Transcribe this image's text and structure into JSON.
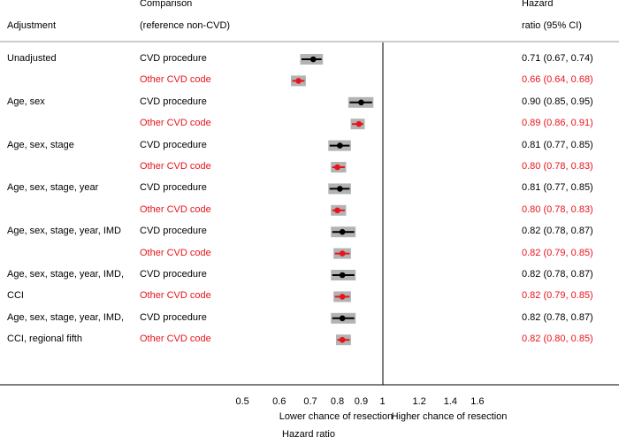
{
  "header": {
    "adjustment": "Adjustment",
    "comparison_line1": "Comparison",
    "comparison_line2": "(reference non-CVD)",
    "hr_line1": "Hazard",
    "hr_line2": "ratio (95% CI)"
  },
  "colors": {
    "cvd_procedure": "#000000",
    "other_cvd_code": "#e8141c",
    "ci_box": "#b3b3b3"
  },
  "chart_data": {
    "type": "forest",
    "xlabel": "Hazard ratio",
    "xscale": "log",
    "xlim": [
      0.4,
      2.2
    ],
    "reference_line": 1,
    "ticks": [
      "0.5",
      "0.6",
      "0.7",
      "0.8",
      "0.9",
      "1",
      "1.2",
      "1.4",
      "1.6"
    ],
    "tick_values": [
      0.5,
      0.6,
      0.7,
      0.8,
      0.9,
      1,
      1.2,
      1.4,
      1.6
    ],
    "annotation_left": "Lower chance of resection",
    "annotation_right": "Higher chance of resection",
    "rows": [
      {
        "adjustment": "Unadjusted",
        "comparison": "CVD procedure",
        "group": "cvd",
        "hr": 0.71,
        "lo": 0.67,
        "hi": 0.74,
        "label": "0.71 (0.67, 0.74)"
      },
      {
        "adjustment": "",
        "comparison": "Other CVD code",
        "group": "other",
        "hr": 0.66,
        "lo": 0.64,
        "hi": 0.68,
        "label": "0.66 (0.64, 0.68)"
      },
      {
        "adjustment": "Age, sex",
        "comparison": "CVD procedure",
        "group": "cvd",
        "hr": 0.9,
        "lo": 0.85,
        "hi": 0.95,
        "label": "0.90 (0.85, 0.95)"
      },
      {
        "adjustment": "",
        "comparison": "Other CVD code",
        "group": "other",
        "hr": 0.89,
        "lo": 0.86,
        "hi": 0.91,
        "label": "0.89 (0.86, 0.91)"
      },
      {
        "adjustment": "Age, sex, stage",
        "comparison": "CVD procedure",
        "group": "cvd",
        "hr": 0.81,
        "lo": 0.77,
        "hi": 0.85,
        "label": "0.81 (0.77, 0.85)"
      },
      {
        "adjustment": "",
        "comparison": "Other CVD code",
        "group": "other",
        "hr": 0.8,
        "lo": 0.78,
        "hi": 0.83,
        "label": "0.80 (0.78, 0.83)"
      },
      {
        "adjustment": "Age, sex, stage, year",
        "comparison": "CVD procedure",
        "group": "cvd",
        "hr": 0.81,
        "lo": 0.77,
        "hi": 0.85,
        "label": "0.81 (0.77, 0.85)"
      },
      {
        "adjustment": "",
        "comparison": "Other CVD code",
        "group": "other",
        "hr": 0.8,
        "lo": 0.78,
        "hi": 0.83,
        "label": "0.80 (0.78, 0.83)"
      },
      {
        "adjustment": "Age, sex, stage, year, IMD",
        "comparison": "CVD procedure",
        "group": "cvd",
        "hr": 0.82,
        "lo": 0.78,
        "hi": 0.87,
        "label": "0.82 (0.78, 0.87)"
      },
      {
        "adjustment": "",
        "comparison": "Other CVD code",
        "group": "other",
        "hr": 0.82,
        "lo": 0.79,
        "hi": 0.85,
        "label": "0.82 (0.79, 0.85)"
      },
      {
        "adjustment": "Age, sex, stage, year, IMD,",
        "comparison": "CVD procedure",
        "group": "cvd",
        "hr": 0.82,
        "lo": 0.78,
        "hi": 0.87,
        "label": "0.82 (0.78, 0.87)"
      },
      {
        "adjustment": "CCI",
        "comparison": "Other CVD code",
        "group": "other",
        "hr": 0.82,
        "lo": 0.79,
        "hi": 0.85,
        "label": "0.82 (0.79, 0.85)"
      },
      {
        "adjustment": "Age, sex, stage, year, IMD,",
        "comparison": "CVD procedure",
        "group": "cvd",
        "hr": 0.82,
        "lo": 0.78,
        "hi": 0.87,
        "label": "0.82 (0.78, 0.87)"
      },
      {
        "adjustment": "CCI, regional fifth",
        "comparison": "Other CVD code",
        "group": "other",
        "hr": 0.82,
        "lo": 0.8,
        "hi": 0.85,
        "label": "0.82 (0.80, 0.85)"
      }
    ]
  }
}
